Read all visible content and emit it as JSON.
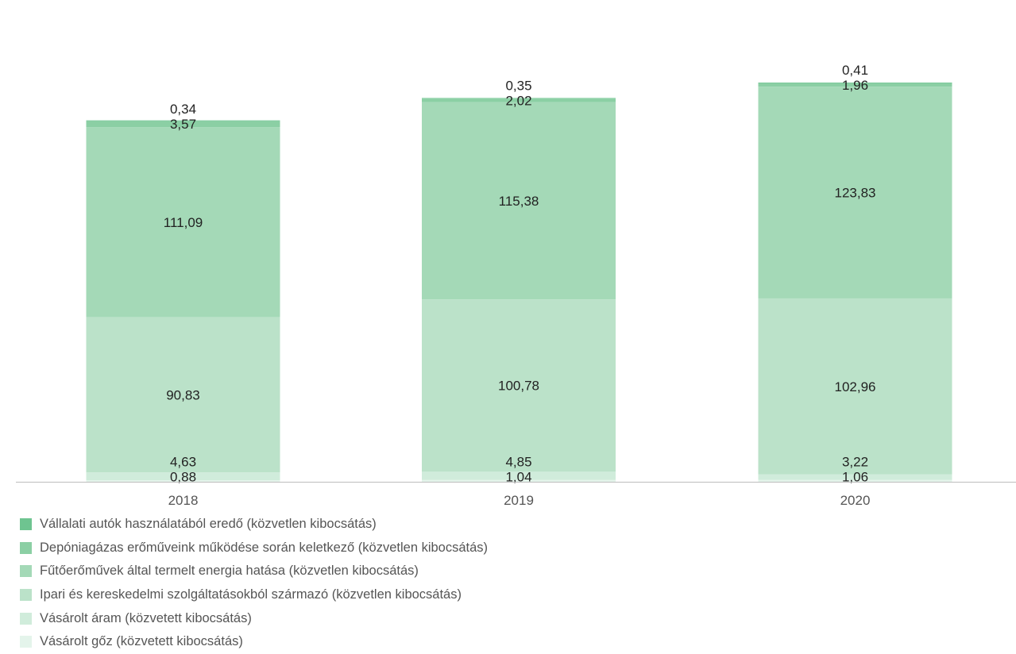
{
  "chart_data": {
    "type": "bar",
    "stacked": true,
    "categories": [
      "2018",
      "2019",
      "2020"
    ],
    "series": [
      {
        "name": "Vásárolt gőz (közvetett kibocsátás)",
        "color": "#e4f4eb",
        "values": [
          0.88,
          1.04,
          1.06
        ],
        "labels": [
          "0,88",
          "1,04",
          "1,06"
        ]
      },
      {
        "name": "Vásárolt áram (közvetett kibocsátás)",
        "color": "#d0ecdb",
        "values": [
          4.63,
          4.85,
          3.22
        ],
        "labels": [
          "4,63",
          "4,85",
          "3,22"
        ]
      },
      {
        "name": "Ipari és kereskedelmi szolgáltatásokból származó (közvetlen kibocsátás)",
        "color": "#bbe2c9",
        "values": [
          90.83,
          100.78,
          102.96
        ],
        "labels": [
          "90,83",
          "100,78",
          "102,96"
        ]
      },
      {
        "name": "Fűtőerőművek által termelt energia hatása (közvetlen kibocsátás)",
        "color": "#a4d9b7",
        "values": [
          111.09,
          115.38,
          123.83
        ],
        "labels": [
          "111,09",
          "115,38",
          "123,83"
        ]
      },
      {
        "name": "Depóniagázas erőműveink működése során keletkező (közvetlen kibocsátás)",
        "color": "#8bcfa4",
        "values": [
          3.57,
          2.02,
          1.96
        ],
        "labels": [
          "3,57",
          "2,02",
          "1,96"
        ]
      },
      {
        "name": "Vállalati autók használatából eredő (közvetlen kibocsátás)",
        "color": "#6ec490",
        "values": [
          0.34,
          0.35,
          0.41
        ],
        "labels": [
          "0,34",
          "0,35",
          "0,41"
        ]
      }
    ],
    "legend_position": "bottom-left",
    "grid": false
  }
}
